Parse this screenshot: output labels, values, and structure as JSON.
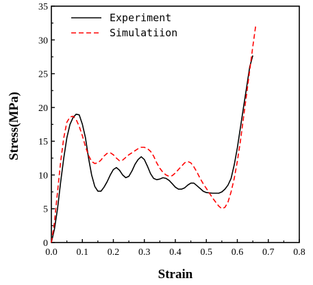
{
  "chart_data": {
    "type": "line",
    "xlabel": "Strain",
    "ylabel": "Stress(MPa)",
    "xlim": [
      0.0,
      0.8
    ],
    "ylim": [
      0,
      35
    ],
    "xticks": [
      "0.0",
      "0.1",
      "0.2",
      "0.3",
      "0.4",
      "0.5",
      "0.6",
      "0.7",
      "0.8"
    ],
    "yticks": [
      "0",
      "5",
      "10",
      "15",
      "20",
      "25",
      "30",
      "35"
    ],
    "grid": false,
    "legend_position": "top-left",
    "series": [
      {
        "name": "Experiment",
        "color": "#000000",
        "dash": "solid",
        "points": [
          [
            0.0,
            0
          ],
          [
            0.01,
            2
          ],
          [
            0.02,
            5
          ],
          [
            0.03,
            9
          ],
          [
            0.04,
            12.5
          ],
          [
            0.05,
            15.5
          ],
          [
            0.06,
            17.5
          ],
          [
            0.07,
            18.5
          ],
          [
            0.08,
            19.0
          ],
          [
            0.09,
            18.9
          ],
          [
            0.1,
            17.5
          ],
          [
            0.11,
            15.5
          ],
          [
            0.12,
            12.5
          ],
          [
            0.13,
            10.0
          ],
          [
            0.14,
            8.3
          ],
          [
            0.15,
            7.6
          ],
          [
            0.16,
            7.6
          ],
          [
            0.17,
            8.2
          ],
          [
            0.18,
            9.0
          ],
          [
            0.19,
            10.0
          ],
          [
            0.2,
            10.8
          ],
          [
            0.21,
            11.1
          ],
          [
            0.22,
            10.7
          ],
          [
            0.23,
            10.0
          ],
          [
            0.24,
            9.6
          ],
          [
            0.25,
            9.8
          ],
          [
            0.26,
            10.6
          ],
          [
            0.27,
            11.6
          ],
          [
            0.28,
            12.3
          ],
          [
            0.29,
            12.7
          ],
          [
            0.3,
            12.3
          ],
          [
            0.31,
            11.3
          ],
          [
            0.32,
            10.2
          ],
          [
            0.33,
            9.5
          ],
          [
            0.34,
            9.3
          ],
          [
            0.35,
            9.4
          ],
          [
            0.36,
            9.6
          ],
          [
            0.37,
            9.5
          ],
          [
            0.38,
            9.2
          ],
          [
            0.39,
            8.7
          ],
          [
            0.4,
            8.2
          ],
          [
            0.41,
            7.9
          ],
          [
            0.42,
            7.9
          ],
          [
            0.43,
            8.1
          ],
          [
            0.44,
            8.5
          ],
          [
            0.45,
            8.8
          ],
          [
            0.46,
            8.8
          ],
          [
            0.47,
            8.4
          ],
          [
            0.48,
            8.0
          ],
          [
            0.49,
            7.6
          ],
          [
            0.5,
            7.4
          ],
          [
            0.52,
            7.3
          ],
          [
            0.54,
            7.3
          ],
          [
            0.55,
            7.5
          ],
          [
            0.56,
            7.9
          ],
          [
            0.57,
            8.5
          ],
          [
            0.58,
            9.5
          ],
          [
            0.59,
            11.5
          ],
          [
            0.6,
            14.0
          ],
          [
            0.61,
            17.0
          ],
          [
            0.62,
            20.0
          ],
          [
            0.63,
            23.0
          ],
          [
            0.64,
            26.0
          ],
          [
            0.65,
            27.7
          ]
        ]
      },
      {
        "name": "Simulatiion",
        "color": "#ff0000",
        "dash": "dashed",
        "points": [
          [
            0.0,
            0
          ],
          [
            0.01,
            3
          ],
          [
            0.02,
            7.5
          ],
          [
            0.03,
            12.0
          ],
          [
            0.04,
            15.5
          ],
          [
            0.05,
            17.8
          ],
          [
            0.06,
            18.6
          ],
          [
            0.07,
            18.7
          ],
          [
            0.08,
            18.2
          ],
          [
            0.09,
            17.2
          ],
          [
            0.1,
            15.8
          ],
          [
            0.11,
            14.2
          ],
          [
            0.12,
            12.9
          ],
          [
            0.13,
            12.0
          ],
          [
            0.14,
            11.7
          ],
          [
            0.15,
            11.8
          ],
          [
            0.16,
            12.2
          ],
          [
            0.17,
            12.8
          ],
          [
            0.18,
            13.2
          ],
          [
            0.19,
            13.3
          ],
          [
            0.2,
            13.0
          ],
          [
            0.21,
            12.5
          ],
          [
            0.22,
            12.1
          ],
          [
            0.23,
            12.2
          ],
          [
            0.24,
            12.6
          ],
          [
            0.25,
            13.0
          ],
          [
            0.26,
            13.3
          ],
          [
            0.27,
            13.6
          ],
          [
            0.28,
            13.9
          ],
          [
            0.29,
            14.1
          ],
          [
            0.3,
            14.1
          ],
          [
            0.31,
            13.9
          ],
          [
            0.32,
            13.5
          ],
          [
            0.33,
            12.8
          ],
          [
            0.34,
            11.8
          ],
          [
            0.35,
            11.0
          ],
          [
            0.36,
            10.4
          ],
          [
            0.37,
            10.0
          ],
          [
            0.38,
            9.8
          ],
          [
            0.39,
            9.9
          ],
          [
            0.4,
            10.3
          ],
          [
            0.41,
            10.8
          ],
          [
            0.42,
            11.3
          ],
          [
            0.43,
            11.8
          ],
          [
            0.44,
            12.0
          ],
          [
            0.45,
            11.8
          ],
          [
            0.46,
            11.2
          ],
          [
            0.47,
            10.4
          ],
          [
            0.48,
            9.5
          ],
          [
            0.49,
            8.7
          ],
          [
            0.5,
            8.0
          ],
          [
            0.51,
            7.3
          ],
          [
            0.52,
            6.6
          ],
          [
            0.53,
            6.0
          ],
          [
            0.54,
            5.4
          ],
          [
            0.55,
            5.0
          ],
          [
            0.56,
            5.2
          ],
          [
            0.57,
            6.0
          ],
          [
            0.58,
            7.5
          ],
          [
            0.59,
            9.5
          ],
          [
            0.6,
            12.0
          ],
          [
            0.61,
            15.0
          ],
          [
            0.62,
            18.5
          ],
          [
            0.63,
            22.0
          ],
          [
            0.64,
            25.5
          ],
          [
            0.65,
            29.0
          ],
          [
            0.66,
            32.3
          ]
        ]
      }
    ]
  }
}
